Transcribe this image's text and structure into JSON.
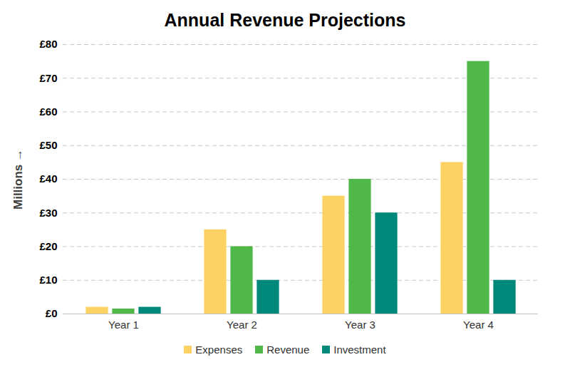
{
  "chart_data": {
    "type": "bar",
    "title": "Annual Revenue Projections",
    "y_label": "Millions",
    "categories": [
      "Year 1",
      "Year 2",
      "Year 3",
      "Year 4"
    ],
    "series": [
      {
        "name": "Expenses",
        "color": "#fcd264",
        "values": [
          2,
          25,
          35,
          45
        ]
      },
      {
        "name": "Revenue",
        "color": "#50b848",
        "values": [
          1.5,
          20,
          40,
          75
        ]
      },
      {
        "name": "Investment",
        "color": "#00897b",
        "values": [
          2,
          10,
          30,
          10
        ]
      }
    ],
    "ylim": [
      0,
      80
    ],
    "yticks": [
      {
        "value": 0,
        "label": "£0"
      },
      {
        "value": 10,
        "label": "£10"
      },
      {
        "value": 20,
        "label": "£20"
      },
      {
        "value": 30,
        "label": "£30"
      },
      {
        "value": 40,
        "label": "£40"
      },
      {
        "value": 50,
        "label": "£50"
      },
      {
        "value": 60,
        "label": "£60"
      },
      {
        "value": 70,
        "label": "£70"
      },
      {
        "value": 80,
        "label": "£80"
      }
    ],
    "grid": true,
    "legend": "bottom"
  }
}
